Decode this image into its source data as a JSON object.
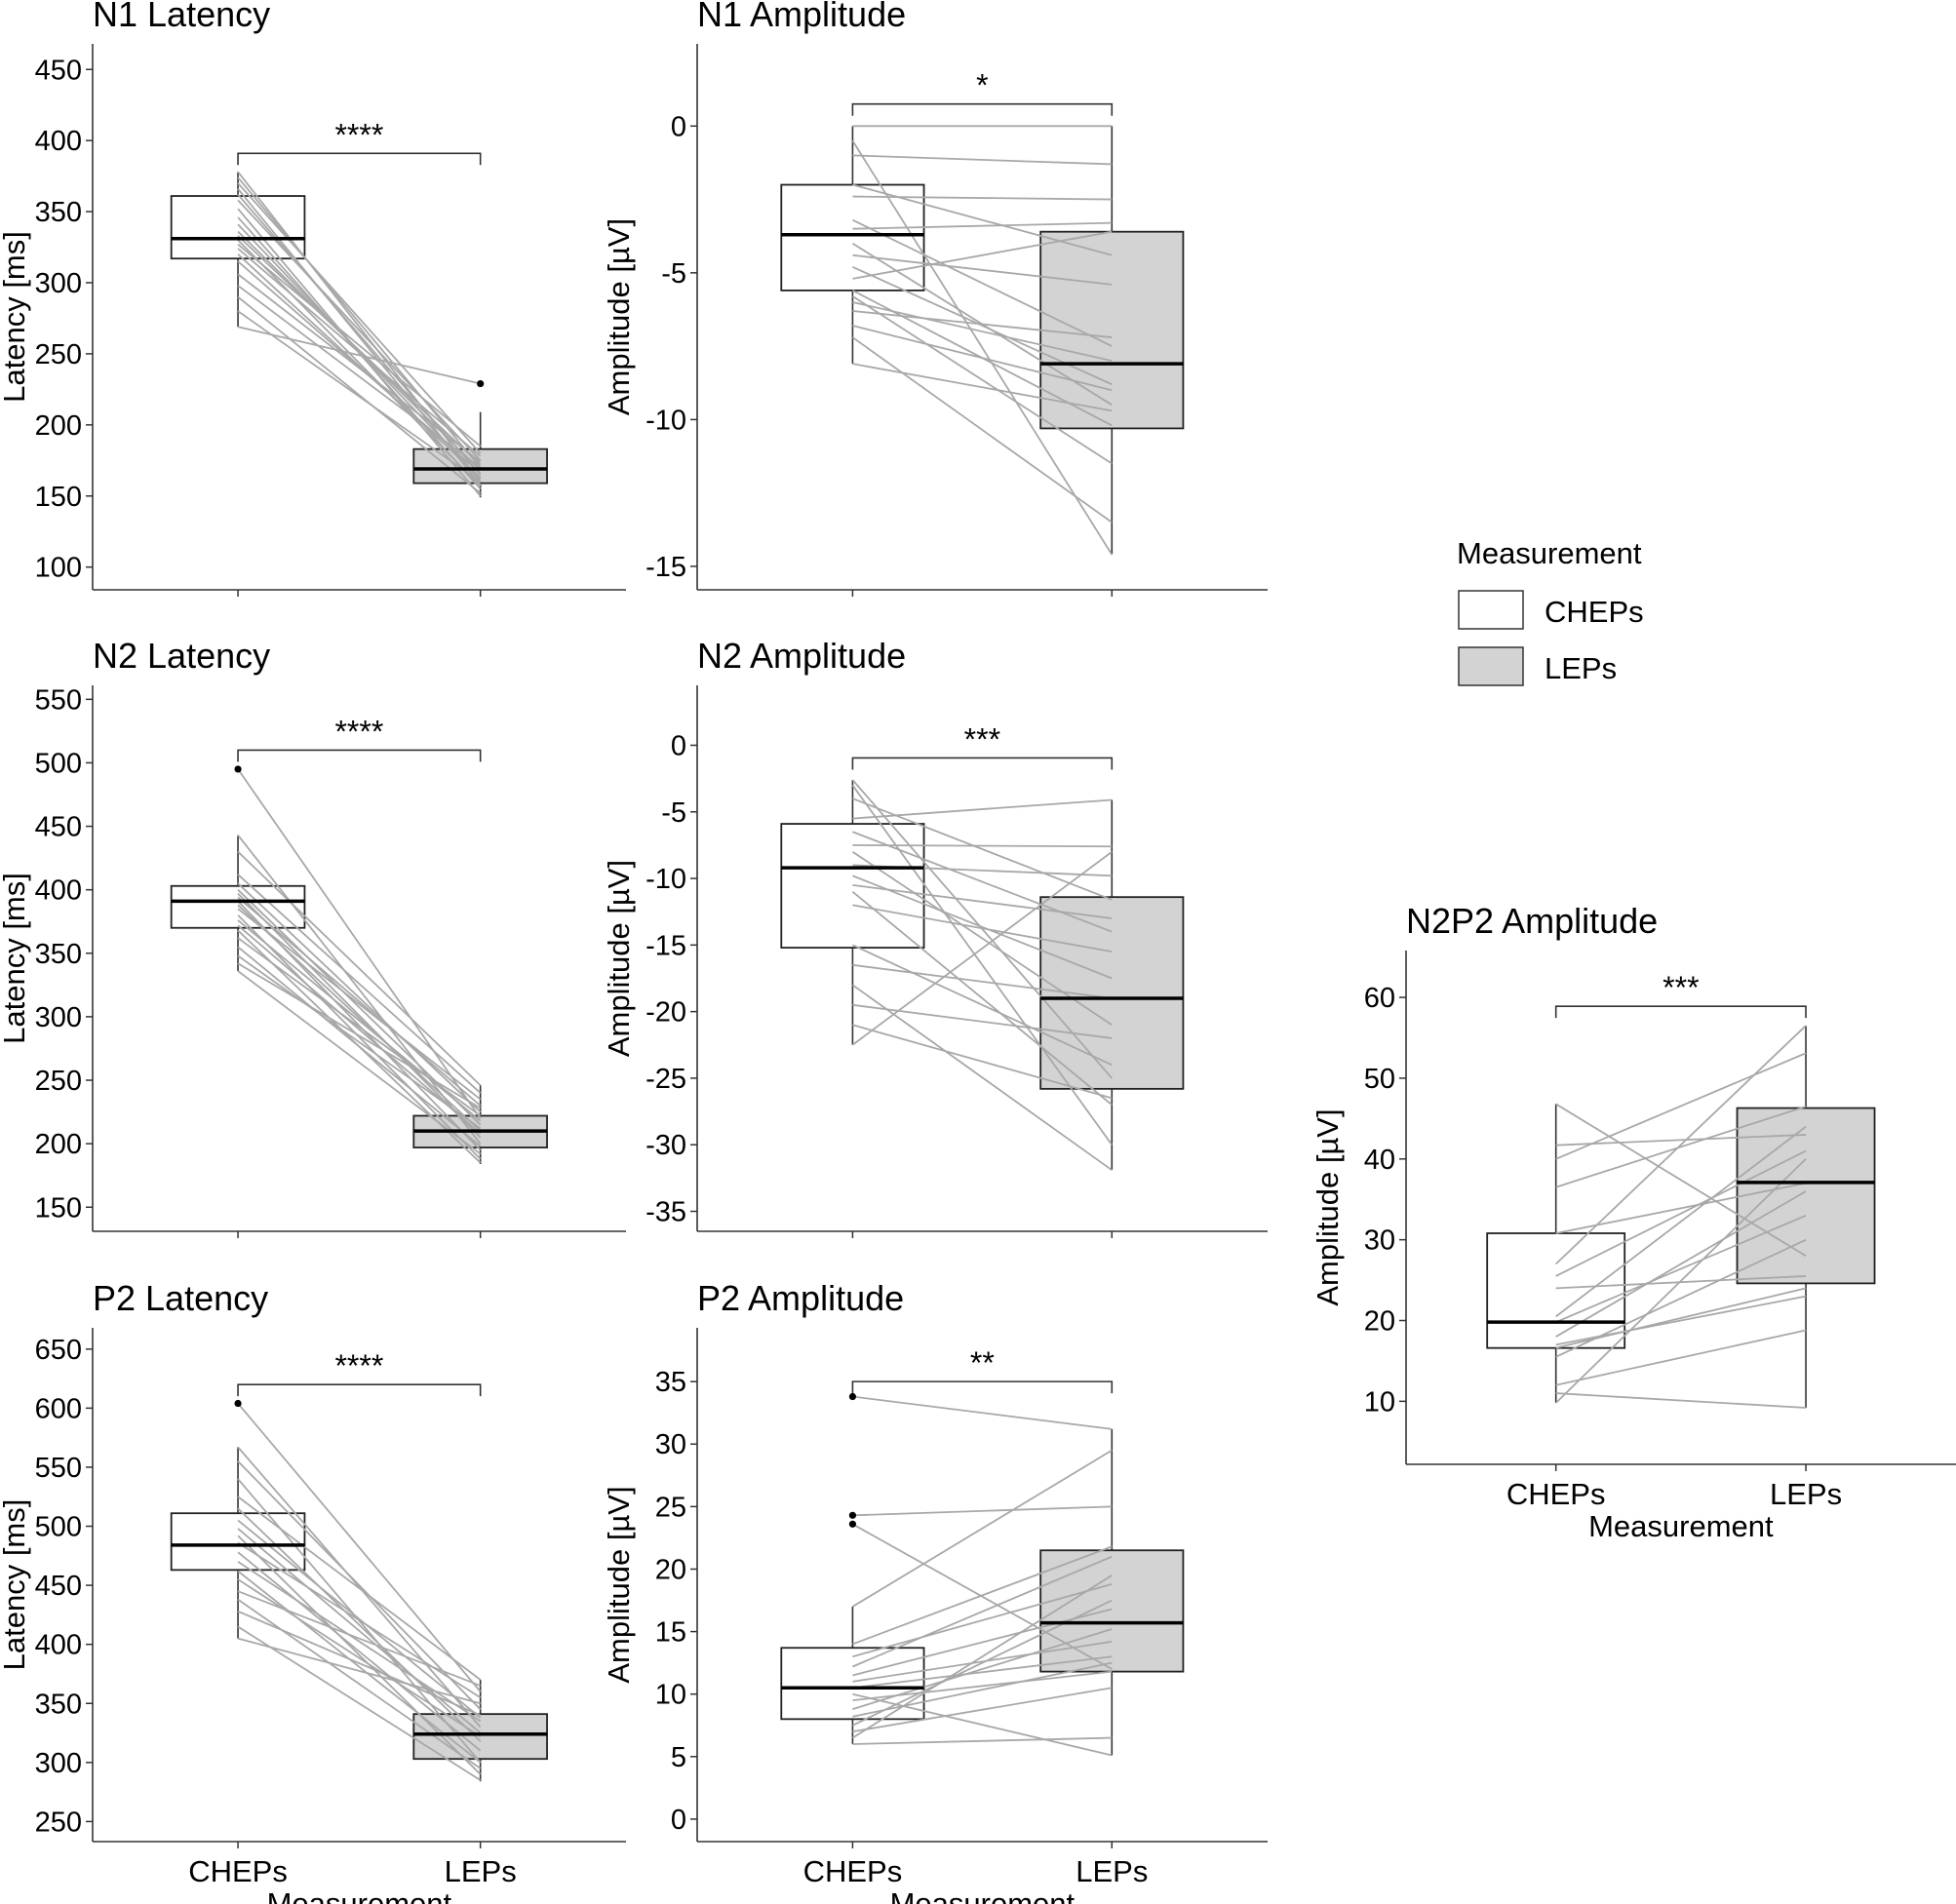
{
  "colors": {
    "chep_fill": "#ffffff",
    "lep_fill": "#d3d3d3",
    "pair_line": "#a8a8a8",
    "stroke": "#000000"
  },
  "legend": {
    "title": "Measurement",
    "items": [
      {
        "label": "CHEPs",
        "fill": "#ffffff"
      },
      {
        "label": "LEPs",
        "fill": "#d3d3d3"
      }
    ]
  },
  "chart_data": [
    {
      "id": "n1-latency",
      "type": "box",
      "title": "N1 Latency",
      "ylabel": "Latency [ms]",
      "categories": [
        "CHEPs",
        "LEPs"
      ],
      "ylim": [
        84,
        468
      ],
      "yticks": [
        100,
        150,
        200,
        250,
        300,
        350,
        400,
        450
      ],
      "show_xlabels": false,
      "xlabel": "Measurement",
      "boxes": [
        {
          "q1": 317,
          "median": 331,
          "q3": 361,
          "whisker_low": 269,
          "whisker_high": 378,
          "outliers": []
        },
        {
          "q1": 159,
          "median": 169,
          "q3": 183,
          "whisker_low": 149,
          "whisker_high": 209,
          "outliers": [
            229
          ]
        }
      ],
      "pairs": [
        [
          378,
          160
        ],
        [
          374,
          170
        ],
        [
          370,
          180
        ],
        [
          366,
          158
        ],
        [
          362,
          165
        ],
        [
          358,
          175
        ],
        [
          352,
          150
        ],
        [
          346,
          155
        ],
        [
          341,
          162
        ],
        [
          336,
          168
        ],
        [
          333,
          172
        ],
        [
          330,
          157
        ],
        [
          327,
          185
        ],
        [
          324,
          178
        ],
        [
          320,
          163
        ],
        [
          315,
          166
        ],
        [
          306,
          174
        ],
        [
          298,
          170
        ],
        [
          290,
          152
        ],
        [
          280,
          160
        ],
        [
          269,
          229
        ]
      ],
      "significance": "****",
      "sig_y": 391
    },
    {
      "id": "n1-amplitude",
      "type": "box",
      "title": "N1 Amplitude",
      "ylabel": "Amplitude [µV]",
      "categories": [
        "CHEPs",
        "LEPs"
      ],
      "ylim": [
        -15.8,
        2.8
      ],
      "yticks": [
        0,
        -5,
        -10,
        -15
      ],
      "show_xlabels": false,
      "xlabel": "Measurement",
      "boxes": [
        {
          "q1": -5.6,
          "median": -3.7,
          "q3": -2.0,
          "whisker_low": -8.1,
          "whisker_high": 0,
          "outliers": []
        },
        {
          "q1": -10.3,
          "median": -8.1,
          "q3": -3.6,
          "whisker_low": -14.6,
          "whisker_high": 0,
          "outliers": []
        }
      ],
      "pairs": [
        [
          0,
          0
        ],
        [
          -0.5,
          -14.6
        ],
        [
          -1.0,
          -1.3
        ],
        [
          -2.0,
          -4.4
        ],
        [
          -2.4,
          -2.5
        ],
        [
          -3.2,
          -7.5
        ],
        [
          -3.5,
          -3.3
        ],
        [
          -4.0,
          -9.5
        ],
        [
          -4.4,
          -5.4
        ],
        [
          -4.8,
          -8.8
        ],
        [
          -5.2,
          -3.6
        ],
        [
          -5.6,
          -10.2
        ],
        [
          -5.8,
          -11.5
        ],
        [
          -6.0,
          -8.0
        ],
        [
          -6.3,
          -7.2
        ],
        [
          -6.8,
          -9.0
        ],
        [
          -7.2,
          -13.5
        ],
        [
          -8.1,
          -9.7
        ]
      ],
      "significance": "*",
      "sig_y": 0.75
    },
    {
      "id": "n2-latency",
      "type": "box",
      "title": "N2 Latency",
      "ylabel": "Latency [ms]",
      "categories": [
        "CHEPs",
        "LEPs"
      ],
      "ylim": [
        131,
        561
      ],
      "yticks": [
        150,
        200,
        250,
        300,
        350,
        400,
        450,
        500,
        550
      ],
      "show_xlabels": false,
      "xlabel": "Measurement",
      "boxes": [
        {
          "q1": 370,
          "median": 391,
          "q3": 403,
          "whisker_low": 336,
          "whisker_high": 443,
          "outliers": [
            495
          ]
        },
        {
          "q1": 197,
          "median": 210,
          "q3": 222,
          "whisker_low": 184,
          "whisker_high": 246,
          "outliers": []
        }
      ],
      "pairs": [
        [
          495,
          220
        ],
        [
          443,
          200
        ],
        [
          430,
          246
        ],
        [
          412,
          240
        ],
        [
          405,
          225
        ],
        [
          400,
          215
        ],
        [
          397,
          205
        ],
        [
          394,
          230
        ],
        [
          391,
          195
        ],
        [
          388,
          210
        ],
        [
          385,
          235
        ],
        [
          380,
          188
        ],
        [
          376,
          218
        ],
        [
          372,
          208
        ],
        [
          368,
          185
        ],
        [
          362,
          222
        ],
        [
          355,
          198
        ],
        [
          348,
          212
        ],
        [
          342,
          228
        ],
        [
          336,
          192
        ]
      ],
      "significance": "****",
      "sig_y": 510
    },
    {
      "id": "n2-amplitude",
      "type": "box",
      "title": "N2 Amplitude",
      "ylabel": "Amplitude [µV]",
      "categories": [
        "CHEPs",
        "LEPs"
      ],
      "ylim": [
        -36.5,
        4.5
      ],
      "yticks": [
        0,
        -5,
        -10,
        -15,
        -20,
        -25,
        -30,
        -35
      ],
      "show_xlabels": false,
      "xlabel": "Measurement",
      "boxes": [
        {
          "q1": -15.2,
          "median": -9.2,
          "q3": -5.9,
          "whisker_low": -22.5,
          "whisker_high": -2.6,
          "outliers": []
        },
        {
          "q1": -25.8,
          "median": -19.0,
          "q3": -11.4,
          "whisker_low": -31.9,
          "whisker_high": -4.1,
          "outliers": []
        }
      ],
      "pairs": [
        [
          -2.6,
          -25.0
        ],
        [
          -3.0,
          -30.0
        ],
        [
          -4.0,
          -11.6
        ],
        [
          -5.5,
          -4.1
        ],
        [
          -6.5,
          -14.0
        ],
        [
          -7.5,
          -7.6
        ],
        [
          -8.0,
          -21.0
        ],
        [
          -9.0,
          -9.8
        ],
        [
          -9.8,
          -17.5
        ],
        [
          -10.5,
          -13.0
        ],
        [
          -11.0,
          -27.0
        ],
        [
          -12.0,
          -15.5
        ],
        [
          -15.0,
          -24.0
        ],
        [
          -16.5,
          -19.0
        ],
        [
          -18.0,
          -31.9
        ],
        [
          -19.5,
          -22.0
        ],
        [
          -21.0,
          -26.5
        ],
        [
          -22.5,
          -8.0
        ]
      ],
      "significance": "***",
      "sig_y": -0.95
    },
    {
      "id": "p2-latency",
      "type": "box",
      "title": "P2 Latency",
      "ylabel": "Latency [ms]",
      "categories": [
        "CHEPs",
        "LEPs"
      ],
      "ylim": [
        233,
        668
      ],
      "yticks": [
        250,
        300,
        350,
        400,
        450,
        500,
        550,
        600,
        650
      ],
      "show_xlabels": true,
      "xlabel": "Measurement",
      "boxes": [
        {
          "q1": 463,
          "median": 484,
          "q3": 511,
          "whisker_low": 405,
          "whisker_high": 567,
          "outliers": [
            604
          ]
        },
        {
          "q1": 303,
          "median": 324,
          "q3": 341,
          "whisker_low": 284,
          "whisker_high": 370,
          "outliers": []
        }
      ],
      "pairs": [
        [
          604,
          360
        ],
        [
          567,
          330
        ],
        [
          555,
          345
        ],
        [
          540,
          300
        ],
        [
          525,
          370
        ],
        [
          515,
          318
        ],
        [
          505,
          338
        ],
        [
          498,
          325
        ],
        [
          492,
          290
        ],
        [
          486,
          355
        ],
        [
          478,
          310
        ],
        [
          470,
          335
        ],
        [
          462,
          300
        ],
        [
          455,
          322
        ],
        [
          445,
          365
        ],
        [
          438,
          295
        ],
        [
          428,
          340
        ],
        [
          415,
          285
        ],
        [
          405,
          350
        ]
      ],
      "significance": "****",
      "sig_y": 620
    },
    {
      "id": "p2-amplitude",
      "type": "box",
      "title": "P2 Amplitude",
      "ylabel": "Amplitude [µV]",
      "categories": [
        "CHEPs",
        "LEPs"
      ],
      "ylim": [
        -1.8,
        39.3
      ],
      "yticks": [
        0,
        5,
        10,
        15,
        20,
        25,
        30,
        35
      ],
      "show_xlabels": true,
      "xlabel": "Measurement",
      "boxes": [
        {
          "q1": 8.0,
          "median": 10.5,
          "q3": 13.7,
          "whisker_low": 6.0,
          "whisker_high": 17.0,
          "outliers": [
            33.8,
            24.3,
            23.6
          ]
        },
        {
          "q1": 11.8,
          "median": 15.7,
          "q3": 21.5,
          "whisker_low": 5.1,
          "whisker_high": 31.2,
          "outliers": []
        }
      ],
      "pairs": [
        [
          33.8,
          31.2
        ],
        [
          24.3,
          25.0
        ],
        [
          23.6,
          12.0
        ],
        [
          17.0,
          29.5
        ],
        [
          14.0,
          21.8
        ],
        [
          13.0,
          18.8
        ],
        [
          12.2,
          21.0
        ],
        [
          11.5,
          16.8
        ],
        [
          11.0,
          14.2
        ],
        [
          10.5,
          13.0
        ],
        [
          10.0,
          5.1
        ],
        [
          9.5,
          11.8
        ],
        [
          8.8,
          15.2
        ],
        [
          8.2,
          12.5
        ],
        [
          7.5,
          17.5
        ],
        [
          7.0,
          10.5
        ],
        [
          6.5,
          19.5
        ],
        [
          6.0,
          6.5
        ]
      ],
      "significance": "**",
      "sig_y": 35.0
    },
    {
      "id": "n2p2-amplitude",
      "type": "box",
      "title": "N2P2 Amplitude",
      "ylabel": "Amplitude [µV]",
      "categories": [
        "CHEPs",
        "LEPs"
      ],
      "ylim": [
        2.2,
        65.8
      ],
      "yticks": [
        10,
        20,
        30,
        40,
        50,
        60
      ],
      "show_xlabels": true,
      "xlabel": "Measurement",
      "boxes": [
        {
          "q1": 16.6,
          "median": 19.8,
          "q3": 30.8,
          "whisker_low": 9.8,
          "whisker_high": 46.8,
          "outliers": []
        },
        {
          "q1": 24.6,
          "median": 37.1,
          "q3": 46.3,
          "whisker_low": 9.2,
          "whisker_high": 56.5,
          "outliers": []
        }
      ],
      "pairs": [
        [
          46.8,
          28.0
        ],
        [
          41.7,
          43.0
        ],
        [
          40.0,
          53.1
        ],
        [
          36.5,
          46.5
        ],
        [
          30.8,
          37.0
        ],
        [
          27.0,
          56.5
        ],
        [
          25.5,
          41.0
        ],
        [
          24.0,
          25.5
        ],
        [
          20.5,
          44.0
        ],
        [
          19.8,
          33.0
        ],
        [
          18.0,
          36.0
        ],
        [
          17.0,
          23.0
        ],
        [
          16.6,
          24.0
        ],
        [
          15.5,
          30.0
        ],
        [
          12.0,
          18.8
        ],
        [
          11.0,
          9.2
        ],
        [
          9.8,
          40.0
        ]
      ],
      "significance": "***",
      "sig_y": 58.9
    }
  ]
}
